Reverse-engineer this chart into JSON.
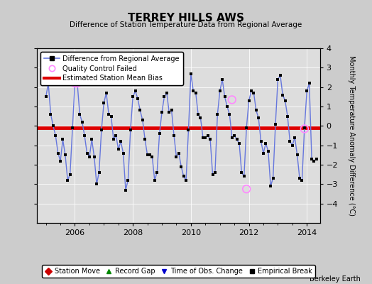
{
  "title": "TERREY HILLS AWS",
  "subtitle": "Difference of Station Temperature Data from Regional Average",
  "ylabel": "Monthly Temperature Anomaly Difference (°C)",
  "credit": "Berkeley Earth",
  "xlim": [
    2004.7,
    2014.45
  ],
  "ylim": [
    -5,
    4
  ],
  "yticks": [
    -4,
    -3,
    -2,
    -1,
    0,
    1,
    2,
    3,
    4
  ],
  "xticks": [
    2006,
    2008,
    2010,
    2012,
    2014
  ],
  "mean_bias": -0.08,
  "line_color": "#6677dd",
  "marker_color": "#000000",
  "bias_color": "#dd0000",
  "qc_color": "#ff88ff",
  "bg_color": "#cccccc",
  "plot_bg_color": "#dddddd",
  "times": [
    2005.0,
    2005.083,
    2005.167,
    2005.25,
    2005.333,
    2005.417,
    2005.5,
    2005.583,
    2005.667,
    2005.75,
    2005.833,
    2005.917,
    2006.0,
    2006.083,
    2006.167,
    2006.25,
    2006.333,
    2006.417,
    2006.5,
    2006.583,
    2006.667,
    2006.75,
    2006.833,
    2006.917,
    2007.0,
    2007.083,
    2007.167,
    2007.25,
    2007.333,
    2007.417,
    2007.5,
    2007.583,
    2007.667,
    2007.75,
    2007.833,
    2007.917,
    2008.0,
    2008.083,
    2008.167,
    2008.25,
    2008.333,
    2008.417,
    2008.5,
    2008.583,
    2008.667,
    2008.75,
    2008.833,
    2008.917,
    2009.0,
    2009.083,
    2009.167,
    2009.25,
    2009.333,
    2009.417,
    2009.5,
    2009.583,
    2009.667,
    2009.75,
    2009.833,
    2009.917,
    2010.0,
    2010.083,
    2010.167,
    2010.25,
    2010.333,
    2010.417,
    2010.5,
    2010.583,
    2010.667,
    2010.75,
    2010.833,
    2010.917,
    2011.0,
    2011.083,
    2011.167,
    2011.25,
    2011.333,
    2011.417,
    2011.5,
    2011.583,
    2011.667,
    2011.75,
    2011.833,
    2011.917,
    2012.0,
    2012.083,
    2012.167,
    2012.25,
    2012.333,
    2012.417,
    2012.5,
    2012.583,
    2012.667,
    2012.75,
    2012.833,
    2012.917,
    2013.0,
    2013.083,
    2013.167,
    2013.25,
    2013.333,
    2013.417,
    2013.5,
    2013.583,
    2013.667,
    2013.75,
    2013.833,
    2013.917,
    2014.0,
    2014.083,
    2014.167,
    2014.25,
    2014.333
  ],
  "values": [
    1.5,
    2.2,
    0.6,
    0.0,
    -0.5,
    -1.4,
    -1.8,
    -0.7,
    -1.5,
    -2.8,
    -2.5,
    -0.1,
    2.2,
    2.2,
    0.6,
    0.2,
    -0.5,
    -1.4,
    -1.6,
    -0.7,
    -1.6,
    -3.0,
    -2.4,
    -0.2,
    1.2,
    1.7,
    0.6,
    0.5,
    -0.7,
    -0.5,
    -1.2,
    -0.8,
    -1.4,
    -3.3,
    -2.8,
    -0.2,
    1.5,
    1.8,
    1.4,
    0.8,
    0.3,
    -0.7,
    -1.5,
    -1.5,
    -1.6,
    -2.8,
    -2.4,
    -0.4,
    0.7,
    1.5,
    1.7,
    0.7,
    0.8,
    -0.5,
    -1.6,
    -1.4,
    -2.1,
    -2.6,
    -2.8,
    -0.2,
    2.7,
    1.8,
    1.7,
    0.6,
    0.4,
    -0.6,
    -0.6,
    -0.5,
    -0.7,
    -2.5,
    -2.4,
    0.6,
    1.8,
    2.4,
    1.5,
    1.0,
    0.6,
    -0.6,
    -0.5,
    -0.7,
    -0.9,
    -2.4,
    -2.6,
    -0.1,
    1.3,
    1.8,
    1.7,
    0.8,
    0.4,
    -0.8,
    -1.4,
    -0.9,
    -1.3,
    -3.1,
    -2.7,
    0.1,
    2.4,
    2.6,
    1.6,
    1.3,
    0.5,
    -0.8,
    -1.0,
    -0.6,
    -1.5,
    -2.7,
    -2.8,
    -0.1,
    1.8,
    2.2,
    -1.7,
    -1.8,
    -1.7
  ],
  "qc_failed_times": [
    2006.0,
    2006.083,
    2011.417,
    2011.917,
    2013.917
  ],
  "qc_failed_values": [
    2.2,
    2.2,
    1.35,
    -3.25,
    -0.15
  ]
}
